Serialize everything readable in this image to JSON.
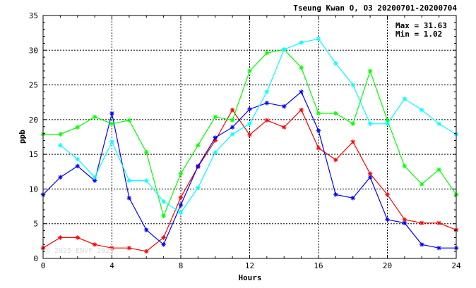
{
  "chart_data": {
    "type": "line",
    "title": "Tseung Kwan O, O3 20200701-20200704",
    "xlabel": "Hours",
    "ylabel": "ppb",
    "xlim": [
      0,
      24
    ],
    "ylim": [
      0,
      35
    ],
    "x_ticks": [
      "0",
      "4",
      "8",
      "12",
      "16",
      "20",
      "24"
    ],
    "y_ticks": [
      "0",
      "5",
      "10",
      "15",
      "20",
      "25",
      "30",
      "35"
    ],
    "grid": true,
    "stats": {
      "max_label": "Max = 31.63",
      "min_label": "Min =  1.02"
    },
    "watermark": "© 2025 ENVF 2025",
    "series": [
      {
        "color": "#ff0000",
        "x": [
          0,
          1,
          2,
          3,
          4,
          5,
          6,
          7,
          8,
          9,
          10,
          11,
          12,
          13,
          14,
          15,
          16,
          17,
          18,
          19,
          20,
          21,
          22,
          23,
          24
        ],
        "y": [
          1.5,
          3.0,
          3.0,
          2.0,
          1.5,
          1.5,
          1.02,
          3.0,
          8.8,
          13.2,
          17.0,
          21.4,
          17.8,
          19.9,
          18.9,
          21.4,
          15.9,
          14.2,
          16.8,
          12.2,
          9.2,
          5.6,
          5.1,
          5.1,
          4.1
        ]
      },
      {
        "color": "#0000ff",
        "x": [
          0,
          1,
          2,
          3,
          4,
          5,
          6,
          7,
          8,
          9,
          10,
          11,
          12,
          13,
          14,
          15,
          16,
          17,
          18,
          19,
          20,
          21,
          22,
          23,
          24
        ],
        "y": [
          9.2,
          11.7,
          13.3,
          11.2,
          20.9,
          8.7,
          4.1,
          2.0,
          7.7,
          13.3,
          17.4,
          18.9,
          21.5,
          22.4,
          21.9,
          24.0,
          18.4,
          9.2,
          8.7,
          11.7,
          5.6,
          5.1,
          2.0,
          1.5,
          1.5
        ]
      },
      {
        "color": "#00ff00",
        "x": [
          0,
          1,
          2,
          3,
          4,
          5,
          6,
          7,
          8,
          9,
          10,
          11,
          12,
          13,
          14,
          15,
          16,
          17,
          18,
          19,
          20,
          21,
          22,
          23,
          24
        ],
        "y": [
          17.9,
          17.9,
          18.9,
          20.4,
          19.4,
          19.9,
          15.3,
          6.1,
          12.2,
          16.3,
          20.4,
          19.9,
          27.0,
          29.6,
          30.1,
          27.5,
          20.9,
          20.9,
          19.4,
          27.0,
          19.9,
          13.3,
          10.7,
          12.8,
          9.2
        ]
      },
      {
        "color": "#00ffff",
        "x": [
          1,
          2,
          3,
          4,
          5,
          6,
          7,
          8,
          9,
          10,
          11,
          12,
          13,
          14,
          15,
          16,
          17,
          18,
          19,
          20,
          21,
          22,
          23,
          24
        ],
        "y": [
          16.3,
          14.3,
          11.7,
          16.8,
          11.2,
          11.2,
          8.2,
          6.6,
          10.2,
          15.3,
          17.9,
          19.4,
          24.0,
          30.1,
          31.1,
          31.63,
          28.1,
          25.0,
          19.4,
          19.4,
          23.0,
          21.4,
          19.4,
          17.9
        ]
      }
    ]
  }
}
